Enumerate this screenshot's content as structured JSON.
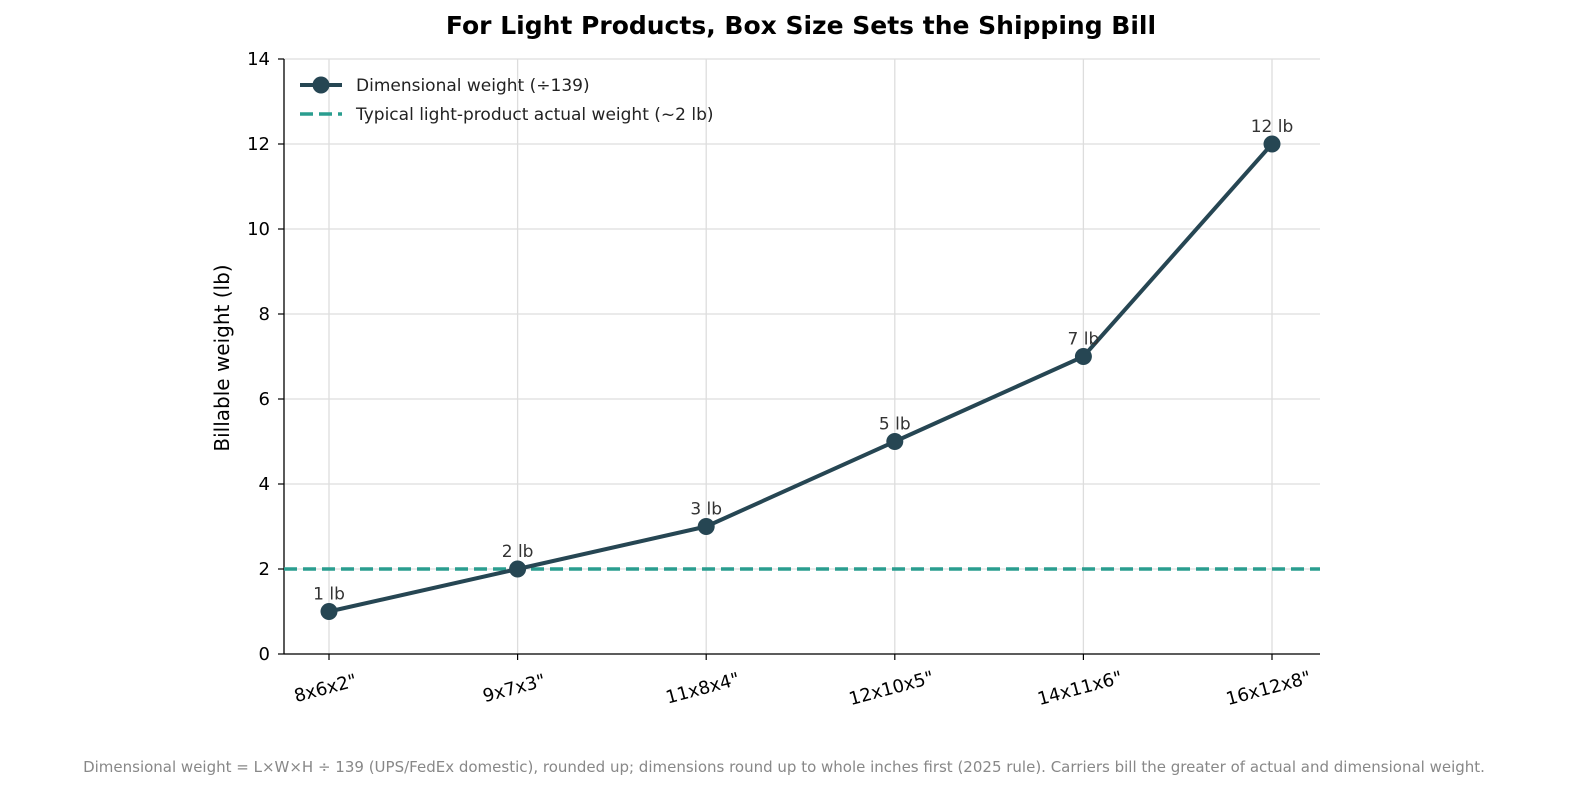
{
  "chart_data": {
    "type": "line",
    "title": "For Light Products, Box Size Sets the Shipping Bill",
    "xlabel": "",
    "ylabel": "Billable weight (lb)",
    "categories": [
      "8x6x2\"",
      "9x7x3\"",
      "11x8x4\"",
      "12x10x5\"",
      "14x11x6\"",
      "16x12x8\""
    ],
    "series": [
      {
        "name": "Dimensional weight (÷139)",
        "values": [
          1,
          2,
          3,
          5,
          7,
          12
        ],
        "data_labels": [
          "1 lb",
          "2 lb",
          "3 lb",
          "5 lb",
          "7 lb",
          "12 lb"
        ],
        "color": "#264653",
        "style": "solid",
        "markers": true
      }
    ],
    "reference_lines": [
      {
        "name": "Typical light-product actual weight (~2 lb)",
        "value": 2,
        "color": "#2a9d8f",
        "style": "dashed"
      }
    ],
    "ylim": [
      0,
      14
    ],
    "yticks": [
      0,
      2,
      4,
      6,
      8,
      10,
      12,
      14
    ],
    "grid": true,
    "legend_position": "top-left",
    "x_tick_rotation": "rotated",
    "footnote": "Dimensional weight = L×W×H ÷ 139 (UPS/FedEx domestic), rounded up; dimensions round up to whole inches first (2025 rule). Carriers bill the greater of actual and dimensional weight."
  }
}
